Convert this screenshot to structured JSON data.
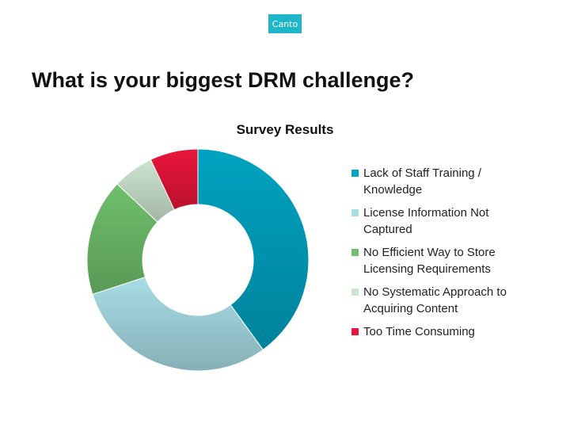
{
  "logo_text": "Canto",
  "title": "What is your biggest DRM challenge?",
  "chart_data": {
    "type": "pie",
    "donut": true,
    "title": "Survey Results",
    "legend_position": "right",
    "categories": [
      "Lack of Staff Training / Knowledge",
      "License Information Not Captured",
      "No Efficient Way to Store Licensing Requirements",
      "No Systematic Approach to Acquiring Content",
      "Too Time Consuming"
    ],
    "values": [
      40,
      30,
      17,
      6,
      7
    ],
    "colors": [
      "#00a3c0",
      "#a8dce5",
      "#6fbf6b",
      "#cde4cf",
      "#e8163b"
    ]
  }
}
